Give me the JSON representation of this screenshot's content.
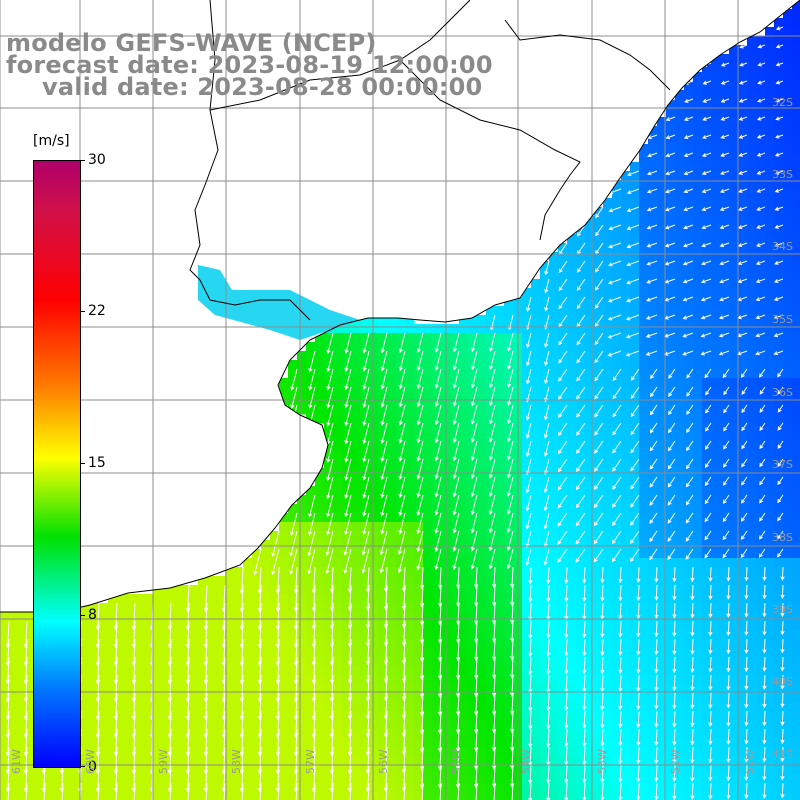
{
  "title": {
    "line1": "modelo GEFS-WAVE (NCEP)",
    "line2": "forecast date: 2023-08-19 12:00:00",
    "line3": "valid date: 2023-08-28 00:00:00"
  },
  "colorbar": {
    "unit": "[m/s]",
    "ticks": [
      "30",
      "22",
      "15",
      "8",
      "0"
    ],
    "colors": [
      "#b0006a",
      "#ff0000",
      "#ff7a00",
      "#ffff00",
      "#00e000",
      "#00ffff",
      "#0078ff",
      "#0000ff"
    ]
  },
  "map": {
    "lat_labels": [
      "32S",
      "33S",
      "34S",
      "35S",
      "36S",
      "37S",
      "38S",
      "39S",
      "40S",
      "41S"
    ],
    "lon_labels": [
      "61W",
      "60W",
      "59W",
      "58W",
      "57W",
      "56W",
      "55W",
      "54W",
      "53W",
      "52W",
      "51W"
    ],
    "land_color": "#ffffff",
    "coast_color": "#000000",
    "grid_color": "#8c8c8c",
    "arrow_color": "#ffffff"
  }
}
